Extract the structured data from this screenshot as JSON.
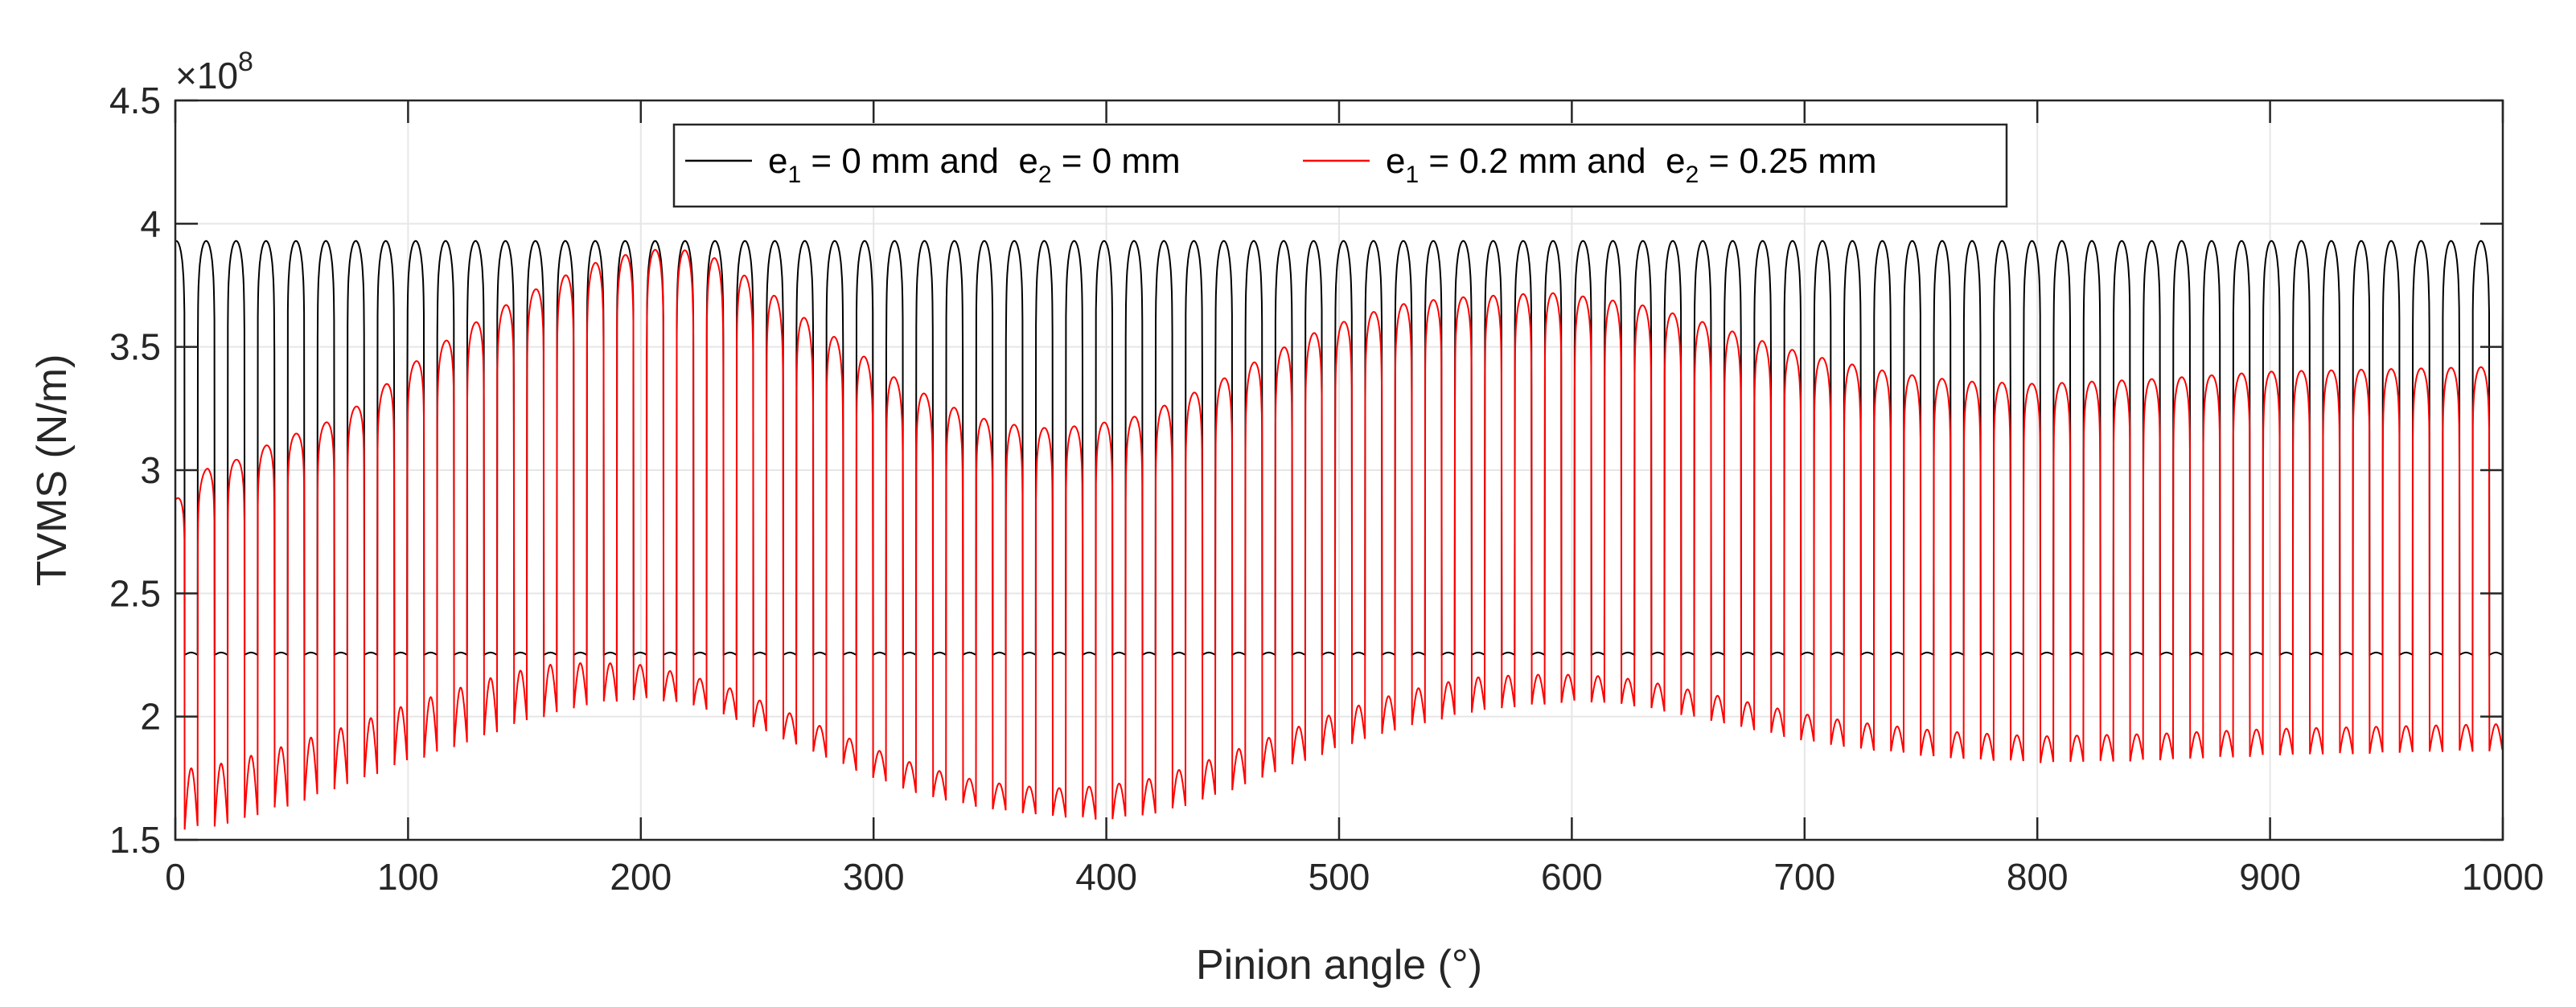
{
  "chart_data": {
    "type": "line",
    "title": "",
    "xlabel": "Pinion angle (°)",
    "ylabel": "TVMS (N/m)",
    "y_exponent_label": "×10",
    "y_exponent_power": "8",
    "xlim": [
      0,
      1000
    ],
    "ylim": [
      1.5,
      4.5
    ],
    "y_scale": 100000000,
    "grid": true,
    "legend_location": "top-center",
    "xticks": [
      0,
      100,
      200,
      300,
      400,
      500,
      600,
      700,
      800,
      900,
      1000
    ],
    "xtick_labels": [
      "0",
      "100",
      "200",
      "300",
      "400",
      "500",
      "600",
      "700",
      "800",
      "900",
      "1000"
    ],
    "yticks": [
      1.5,
      2,
      2.5,
      3,
      3.5,
      4,
      4.5
    ],
    "ytick_labels": [
      "1.5",
      "2",
      "2.5",
      "3",
      "3.5",
      "4",
      "4.5"
    ],
    "mesh_period_deg": 12.86,
    "series": [
      {
        "name": "e1 = 0 mm and  e2 = 0 mm",
        "legend_parts": [
          "e",
          "1",
          " = 0 mm and  e",
          "2",
          " = 0 mm"
        ],
        "color": "#000000",
        "double_contact_peak": 3.93,
        "single_contact_level": 2.25,
        "single_contact_bump": 2.26
      },
      {
        "name": "e1 = 0.2 mm and  e2 = 0.25 mm",
        "legend_parts": [
          "e",
          "1",
          " = 0.2 mm and  e",
          "2",
          " = 0.25 mm"
        ],
        "color": "#ff0000",
        "envelope_upper": {
          "x": [
            0,
            14,
            29,
            45,
            60,
            80,
            100,
            120,
            140,
            160,
            180,
            200,
            215,
            230,
            250,
            270,
            290,
            310,
            330,
            350,
            370,
            390,
            410,
            430,
            450,
            470,
            490,
            510,
            530,
            550,
            570,
            590,
            610,
            630,
            650,
            670,
            690,
            710,
            730,
            750,
            770,
            800,
            850,
            900,
            950,
            1000
          ],
          "y": [
            2.88,
            3.01,
            3.05,
            3.13,
            3.17,
            3.27,
            3.42,
            3.55,
            3.66,
            3.76,
            3.84,
            3.89,
            3.9,
            3.87,
            3.76,
            3.62,
            3.5,
            3.37,
            3.27,
            3.2,
            3.17,
            3.18,
            3.21,
            3.28,
            3.37,
            3.47,
            3.56,
            3.63,
            3.68,
            3.7,
            3.71,
            3.72,
            3.7,
            3.67,
            3.62,
            3.56,
            3.5,
            3.45,
            3.41,
            3.38,
            3.36,
            3.35,
            3.37,
            3.4,
            3.41,
            3.42
          ]
        },
        "envelope_lower": {
          "x": [
            0,
            4,
            20,
            40,
            60,
            80,
            100,
            120,
            140,
            160,
            180,
            200,
            220,
            240,
            260,
            280,
            300,
            320,
            340,
            360,
            380,
            400,
            420,
            440,
            460,
            480,
            500,
            520,
            540,
            560,
            580,
            600,
            620,
            640,
            660,
            680,
            700,
            720,
            740,
            760,
            780,
            800,
            850,
            900,
            950,
            1000
          ],
          "y": [
            1.56,
            1.54,
            1.55,
            1.61,
            1.67,
            1.74,
            1.81,
            1.87,
            1.94,
            2.0,
            2.05,
            2.07,
            2.05,
            1.99,
            1.91,
            1.83,
            1.75,
            1.68,
            1.64,
            1.61,
            1.59,
            1.58,
            1.6,
            1.65,
            1.72,
            1.8,
            1.87,
            1.93,
            1.98,
            2.02,
            2.04,
            2.06,
            2.05,
            2.02,
            1.98,
            1.94,
            1.9,
            1.87,
            1.85,
            1.83,
            1.82,
            1.81,
            1.82,
            1.84,
            1.85,
            1.86
          ]
        },
        "single_contact_band": {
          "x": [
            0,
            20,
            40,
            60,
            80,
            100,
            120,
            140,
            160,
            180,
            200,
            220,
            240,
            260,
            280,
            300,
            320,
            340,
            360,
            380,
            400,
            420,
            440,
            460,
            480,
            500,
            520,
            540,
            560,
            580,
            600,
            620,
            640,
            660,
            680,
            700,
            720,
            740,
            760,
            780,
            800,
            850,
            900,
            950,
            1000
          ],
          "y": [
            1.78,
            1.81,
            1.86,
            1.92,
            1.98,
            2.05,
            2.11,
            2.17,
            2.21,
            2.22,
            2.21,
            2.17,
            2.11,
            2.03,
            1.95,
            1.87,
            1.8,
            1.75,
            1.72,
            1.71,
            1.72,
            1.75,
            1.81,
            1.88,
            1.95,
            2.02,
            2.08,
            2.13,
            2.16,
            2.17,
            2.17,
            2.16,
            2.13,
            2.09,
            2.05,
            2.01,
            1.98,
            1.96,
            1.94,
            1.93,
            1.92,
            1.93,
            1.95,
            1.96,
            1.97
          ]
        }
      }
    ]
  }
}
